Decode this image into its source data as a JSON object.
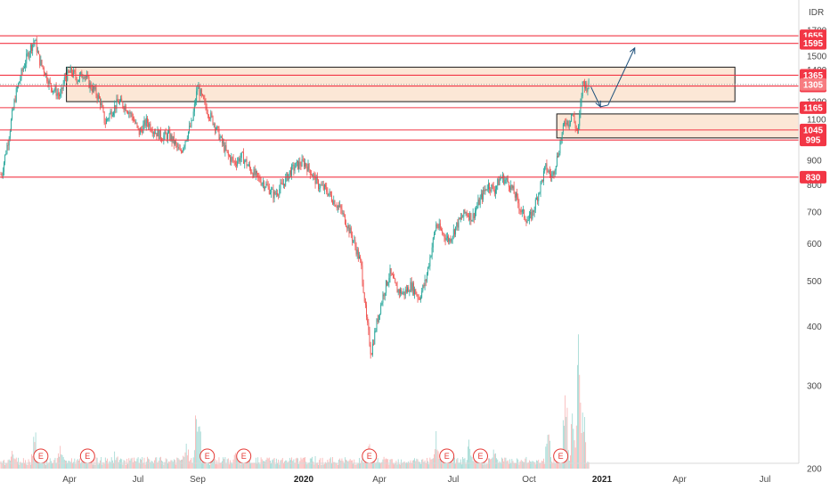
{
  "chart_data": {
    "type": "candlestick",
    "currency": "IDR",
    "y_axis": {
      "ylim": [
        200,
        1700
      ],
      "ticks": [
        200,
        300,
        400,
        500,
        600,
        700,
        800,
        900,
        1000,
        1100,
        1200,
        1300,
        1400,
        1500,
        1600,
        1700
      ]
    },
    "x_axis": {
      "labels": [
        {
          "text": "Apr",
          "date": "2019-04-01",
          "bold": false
        },
        {
          "text": "Jul",
          "date": "2019-07-01",
          "bold": false
        },
        {
          "text": "Sep",
          "date": "2019-09-01",
          "bold": false
        },
        {
          "text": "2020",
          "date": "2020-01-01",
          "bold": true
        },
        {
          "text": "Apr",
          "date": "2020-04-01",
          "bold": false
        },
        {
          "text": "Jul",
          "date": "2020-07-01",
          "bold": false
        },
        {
          "text": "Oct",
          "date": "2020-10-01",
          "bold": false
        },
        {
          "text": "2021",
          "date": "2021-01-01",
          "bold": true
        },
        {
          "text": "Apr",
          "date": "2021-04-01",
          "bold": false
        },
        {
          "text": "Jul",
          "date": "2021-07-01",
          "bold": false
        }
      ]
    },
    "levels": [
      1655,
      1595,
      1365,
      1295,
      1165,
      1045,
      995,
      830
    ],
    "current_price": 1305,
    "price_path": [
      [
        "2019-01-01",
        840
      ],
      [
        "2019-01-10",
        1000
      ],
      [
        "2019-01-20",
        1250
      ],
      [
        "2019-01-30",
        1420
      ],
      [
        "2019-02-08",
        1560
      ],
      [
        "2019-02-14",
        1620
      ],
      [
        "2019-02-20",
        1470
      ],
      [
        "2019-02-28",
        1380
      ],
      [
        "2019-03-06",
        1300
      ],
      [
        "2019-03-14",
        1260
      ],
      [
        "2019-03-20",
        1230
      ],
      [
        "2019-03-26",
        1350
      ],
      [
        "2019-04-03",
        1390
      ],
      [
        "2019-04-12",
        1340
      ],
      [
        "2019-04-20",
        1380
      ],
      [
        "2019-04-28",
        1300
      ],
      [
        "2019-05-05",
        1260
      ],
      [
        "2019-05-12",
        1200
      ],
      [
        "2019-05-18",
        1080
      ],
      [
        "2019-05-26",
        1140
      ],
      [
        "2019-06-05",
        1200
      ],
      [
        "2019-06-15",
        1170
      ],
      [
        "2019-06-24",
        1110
      ],
      [
        "2019-07-02",
        1030
      ],
      [
        "2019-07-10",
        1090
      ],
      [
        "2019-07-18",
        1040
      ],
      [
        "2019-07-26",
        1010
      ],
      [
        "2019-08-02",
        1020
      ],
      [
        "2019-08-08",
        980
      ],
      [
        "2019-08-14",
        930
      ],
      [
        "2019-08-20",
        1010
      ],
      [
        "2019-08-26",
        1080
      ],
      [
        "2019-09-01",
        1290
      ],
      [
        "2019-09-06",
        1220
      ],
      [
        "2019-09-12",
        1150
      ],
      [
        "2019-09-20",
        1080
      ],
      [
        "2019-09-28",
        990
      ],
      [
        "2019-10-06",
        920
      ],
      [
        "2019-10-14",
        890
      ],
      [
        "2019-10-22",
        920
      ],
      [
        "2019-10-30",
        870
      ],
      [
        "2019-11-08",
        830
      ],
      [
        "2019-11-18",
        800
      ],
      [
        "2019-11-28",
        760
      ],
      [
        "2019-12-08",
        800
      ],
      [
        "2019-12-16",
        850
      ],
      [
        "2019-12-24",
        880
      ],
      [
        "2020-01-02",
        890
      ],
      [
        "2020-01-10",
        850
      ],
      [
        "2020-01-18",
        800
      ],
      [
        "2020-01-28",
        780
      ],
      [
        "2020-02-06",
        740
      ],
      [
        "2020-02-14",
        710
      ],
      [
        "2020-02-22",
        660
      ],
      [
        "2020-03-02",
        600
      ],
      [
        "2020-03-10",
        540
      ],
      [
        "2020-03-16",
        420
      ],
      [
        "2020-03-22",
        350
      ],
      [
        "2020-03-28",
        400
      ],
      [
        "2020-04-06",
        470
      ],
      [
        "2020-04-14",
        520
      ],
      [
        "2020-04-22",
        480
      ],
      [
        "2020-05-01",
        470
      ],
      [
        "2020-05-10",
        490
      ],
      [
        "2020-05-20",
        460
      ],
      [
        "2020-05-28",
        500
      ],
      [
        "2020-06-04",
        580
      ],
      [
        "2020-06-10",
        660
      ],
      [
        "2020-06-18",
        630
      ],
      [
        "2020-06-26",
        610
      ],
      [
        "2020-07-06",
        660
      ],
      [
        "2020-07-16",
        700
      ],
      [
        "2020-07-24",
        680
      ],
      [
        "2020-08-02",
        740
      ],
      [
        "2020-08-12",
        800
      ],
      [
        "2020-08-20",
        780
      ],
      [
        "2020-08-28",
        830
      ],
      [
        "2020-09-06",
        810
      ],
      [
        "2020-09-14",
        760
      ],
      [
        "2020-09-22",
        700
      ],
      [
        "2020-09-30",
        670
      ],
      [
        "2020-10-06",
        700
      ],
      [
        "2020-10-14",
        780
      ],
      [
        "2020-10-22",
        870
      ],
      [
        "2020-10-30",
        830
      ],
      [
        "2020-11-06",
        920
      ],
      [
        "2020-11-12",
        1030
      ],
      [
        "2020-11-16",
        1100
      ],
      [
        "2020-11-20",
        1080
      ],
      [
        "2020-11-24",
        1140
      ],
      [
        "2020-11-28",
        1070
      ],
      [
        "2020-12-02",
        1030
      ],
      [
        "2020-12-05",
        1180
      ],
      [
        "2020-12-08",
        1330
      ],
      [
        "2020-12-12",
        1290
      ],
      [
        "2020-12-16",
        1305
      ]
    ],
    "volume_path": [
      [
        "2019-01-15",
        30
      ],
      [
        "2019-02-14",
        60
      ],
      [
        "2019-03-20",
        35
      ],
      [
        "2019-04-15",
        20
      ],
      [
        "2019-06-01",
        25
      ],
      [
        "2019-08-20",
        40
      ],
      [
        "2019-09-01",
        110
      ],
      [
        "2019-10-15",
        25
      ],
      [
        "2020-01-15",
        15
      ],
      [
        "2020-03-20",
        30
      ],
      [
        "2020-06-10",
        40
      ],
      [
        "2020-07-20",
        30
      ],
      [
        "2020-08-20",
        30
      ],
      [
        "2020-10-25",
        50
      ],
      [
        "2020-11-16",
        120
      ],
      [
        "2020-11-25",
        85
      ],
      [
        "2020-12-02",
        170
      ],
      [
        "2020-12-08",
        110
      ]
    ],
    "events": [
      {
        "label": "E",
        "date": "2019-02-22"
      },
      {
        "label": "E",
        "date": "2019-04-25"
      },
      {
        "label": "E",
        "date": "2019-09-12"
      },
      {
        "label": "E",
        "date": "2019-10-24"
      },
      {
        "label": "E",
        "date": "2020-03-20"
      },
      {
        "label": "E",
        "date": "2020-06-23"
      },
      {
        "label": "E",
        "date": "2020-08-03"
      },
      {
        "label": "E",
        "date": "2020-11-10"
      }
    ],
    "zones": [
      {
        "start": "2019-03-28",
        "end": "2021-05-30",
        "low": 1200,
        "high": 1420
      },
      {
        "start": "2020-11-05",
        "end": "2021-08-31",
        "low": 1005,
        "high": 1130
      }
    ],
    "projection": [
      [
        "2020-12-18",
        1290
      ],
      [
        "2020-12-30",
        1170
      ],
      [
        "2021-01-08",
        1180
      ],
      [
        "2021-02-08",
        1560
      ]
    ],
    "colors": {
      "up": "#26a69a",
      "down": "#ef5350",
      "level_line": "#f23645",
      "level_label": "#f23645",
      "zone_fill": "#fbe3cf",
      "zone_border": "#1a1a1a",
      "projection": "#1c4f7a",
      "current_line": "#9e9e9e",
      "current_label": "#f77c80"
    }
  }
}
